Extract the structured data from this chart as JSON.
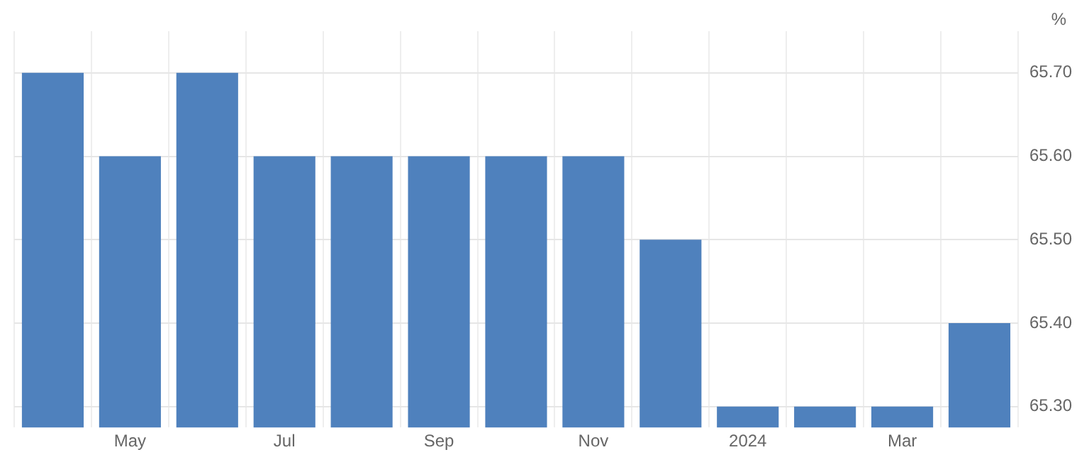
{
  "chart_data": {
    "type": "bar",
    "ylabel": "%",
    "categories": [
      null,
      "May",
      null,
      "Jul",
      null,
      "Sep",
      null,
      "Nov",
      null,
      "2024",
      null,
      "Mar",
      null
    ],
    "values": [
      65.7,
      65.6,
      65.7,
      65.6,
      65.6,
      65.6,
      65.6,
      65.6,
      65.5,
      65.3,
      65.3,
      65.3,
      65.4
    ],
    "color": "#4f81bd",
    "ylim": [
      65.275,
      65.75
    ],
    "yticks": [
      {
        "value": 65.3,
        "label": "65.30"
      },
      {
        "value": 65.4,
        "label": "65.40"
      },
      {
        "value": 65.5,
        "label": "65.50"
      },
      {
        "value": 65.6,
        "label": "65.60"
      },
      {
        "value": 65.7,
        "label": "65.70"
      }
    ],
    "grid": true
  }
}
